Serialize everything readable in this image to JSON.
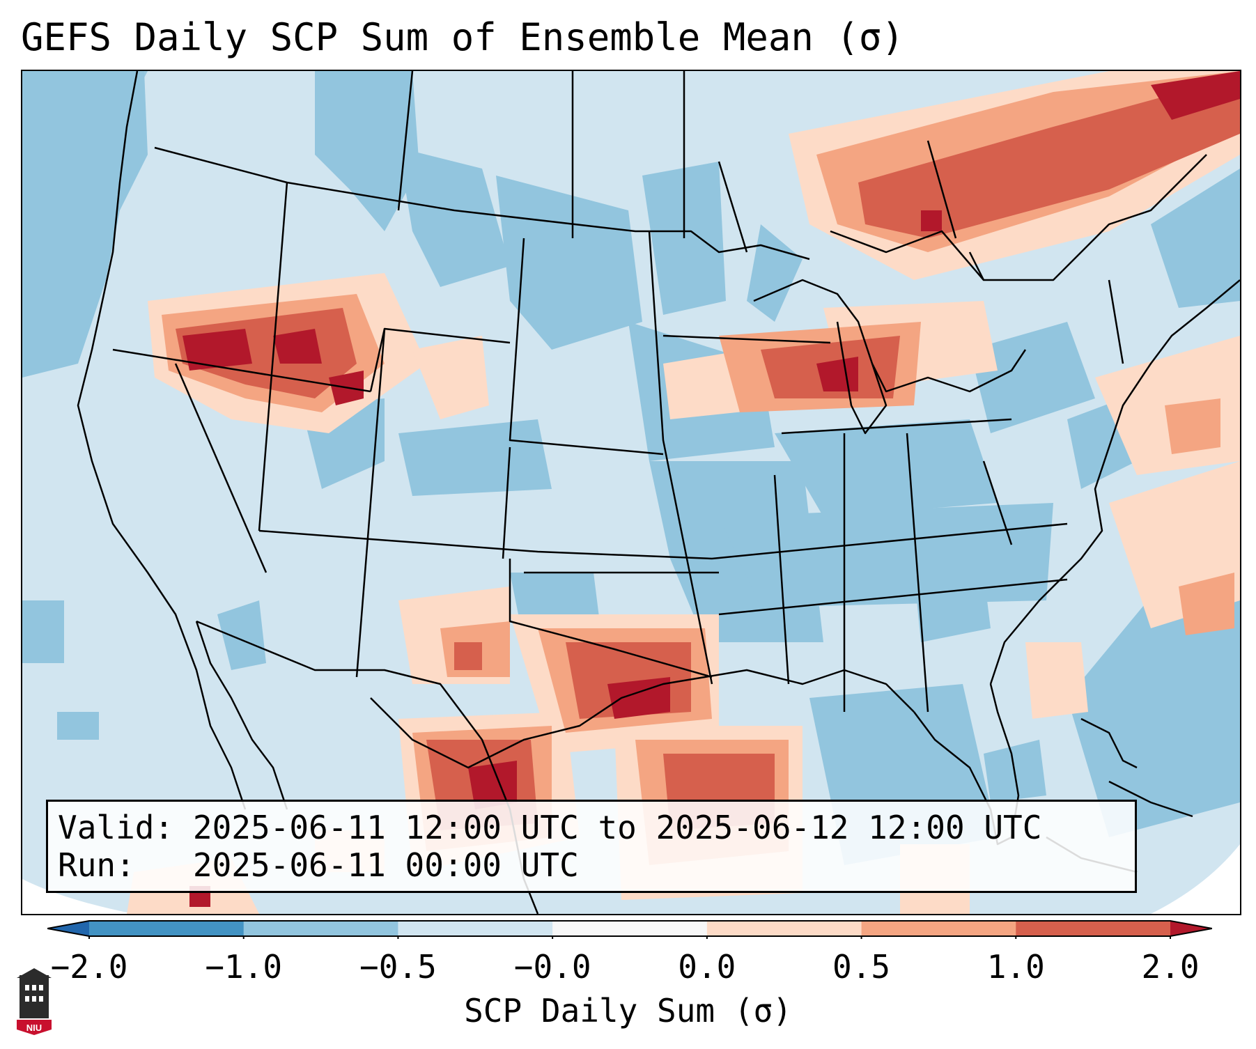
{
  "title": "GEFS Daily SCP Sum of Ensemble Mean (σ)",
  "info": {
    "valid_label": "Valid:",
    "valid_value": "2025-06-11 12:00 UTC to 2025-06-12 12:00 UTC",
    "run_label": "Run:",
    "run_value": "2025-06-11 00:00 UTC"
  },
  "colorbar": {
    "label": "SCP Daily Sum (σ)",
    "ticks": [
      "−2.0",
      "−1.0",
      "−0.5",
      "−0.0",
      "0.0",
      "0.5",
      "1.0",
      "2.0"
    ],
    "bins": [
      {
        "from": -2.0,
        "to": -1.0,
        "color": "#4393c3"
      },
      {
        "from": -1.0,
        "to": -0.5,
        "color": "#92c5de"
      },
      {
        "from": -0.5,
        "to": -0.0,
        "color": "#d1e5f0"
      },
      {
        "from": -0.0,
        "to": 0.0,
        "color": "#f7f7f7"
      },
      {
        "from": 0.0,
        "to": 0.5,
        "color": "#fddbc7"
      },
      {
        "from": 0.5,
        "to": 1.0,
        "color": "#f4a582"
      },
      {
        "from": 1.0,
        "to": 2.0,
        "color": "#d6604d"
      }
    ],
    "extend_low_color": "#2166ac",
    "extend_high_color": "#b2182b"
  },
  "map_colors": {
    "background": "#d1e5f0",
    "neg_mid": "#92c5de",
    "pos_low": "#fddbc7",
    "pos_mid": "#f4a582",
    "pos_high": "#d6604d",
    "pos_max": "#b2182b"
  },
  "logo": {
    "text": "NIU"
  }
}
